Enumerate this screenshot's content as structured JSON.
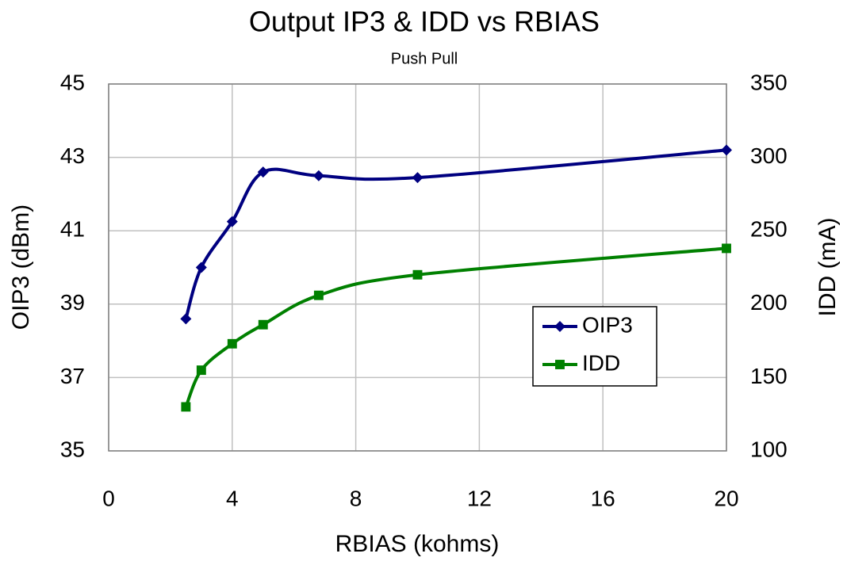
{
  "chart_data": {
    "type": "line",
    "title": "Output IP3 & IDD vs RBIAS",
    "subtitle": "Push Pull",
    "xlabel": "RBIAS (kohms)",
    "ylabel": "OIP3 (dBm)",
    "y2label": "IDD (mA)",
    "x": [
      2.5,
      3,
      4,
      5,
      6.8,
      10,
      20
    ],
    "series": [
      {
        "name": "OIP3",
        "color": "#000080",
        "marker": "diamond",
        "values": [
          38.6,
          40.0,
          41.25,
          42.6,
          42.5,
          42.45,
          43.2
        ]
      },
      {
        "name": "IDD",
        "color": "#008000",
        "marker": "square",
        "axis": "y2",
        "values": [
          130,
          155,
          173,
          186,
          206,
          220,
          238
        ]
      }
    ],
    "xlim": [
      0,
      20
    ],
    "xticks": [
      0,
      4,
      8,
      12,
      16,
      20
    ],
    "ylim": [
      35,
      45
    ],
    "yticks": [
      35,
      37,
      39,
      41,
      43,
      45
    ],
    "y2lim": [
      100,
      350
    ],
    "y2ticks": [
      100,
      150,
      200,
      250,
      300,
      350
    ],
    "grid": true,
    "legend": "center-right",
    "smooth": true
  }
}
